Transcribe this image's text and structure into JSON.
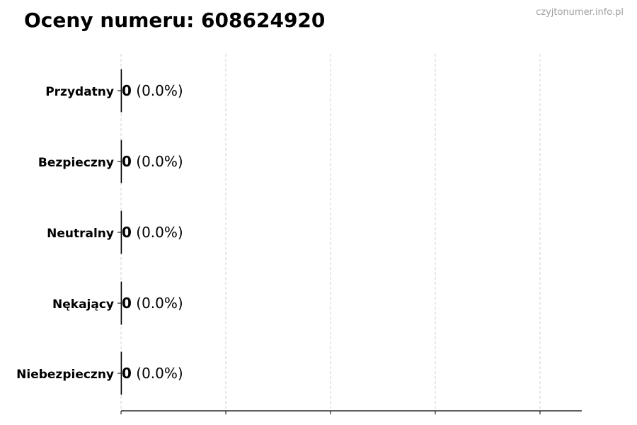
{
  "title": "Oceny numeru: 608624920",
  "watermark": "czyjtonumer.info.pl",
  "chart_data": {
    "type": "bar",
    "orientation": "horizontal",
    "title": "Oceny numeru: 608624920",
    "xlabel": "",
    "ylabel": "",
    "categories": [
      "Przydatny",
      "Bezpieczny",
      "Neutralny",
      "Nękający",
      "Niebezpieczny"
    ],
    "values": [
      0,
      0,
      0,
      0,
      0
    ],
    "data_labels": [
      {
        "count": "0",
        "pct": "(0.0%)"
      },
      {
        "count": "0",
        "pct": "(0.0%)"
      },
      {
        "count": "0",
        "pct": "(0.0%)"
      },
      {
        "count": "0",
        "pct": "(0.0%)"
      },
      {
        "count": "0",
        "pct": "(0.0%)"
      }
    ],
    "x_tick_labels": "none",
    "grid": "vertical dashed",
    "legend": "none",
    "colors": {
      "bar_edge": "#000000",
      "grid": "#d0d0d0",
      "watermark": "#a0a0a0"
    }
  }
}
